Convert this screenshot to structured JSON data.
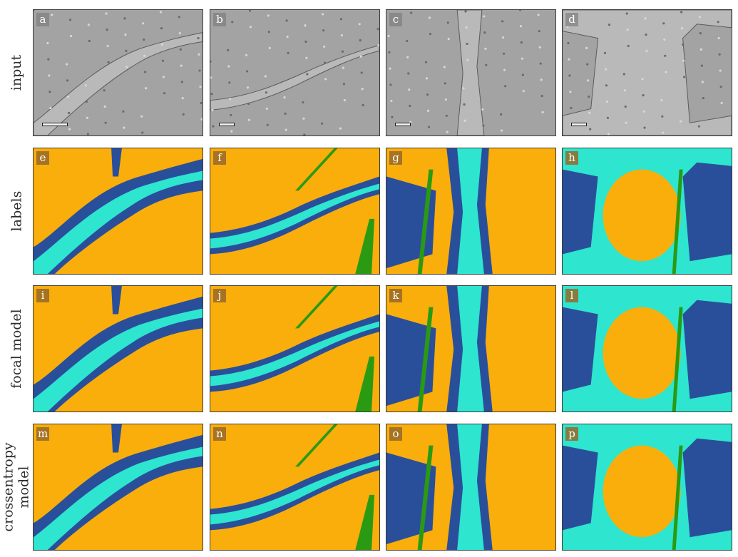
{
  "figure": {
    "rows": [
      {
        "label": "input",
        "type": "input",
        "panels": [
          "a",
          "b",
          "c",
          "d"
        ]
      },
      {
        "label": "labels",
        "type": "seg",
        "panels": [
          "e",
          "f",
          "g",
          "h"
        ]
      },
      {
        "label": "focal model",
        "type": "seg",
        "panels": [
          "i",
          "j",
          "k",
          "l"
        ]
      },
      {
        "label": "crossentropy model",
        "type": "seg",
        "panels": [
          "m",
          "n",
          "o",
          "p"
        ]
      }
    ]
  },
  "colors": {
    "background_class": "#f9ae0b",
    "boundary_class": "#2a4f9a",
    "cyan_class": "#2ee5cf",
    "green_class": "#2a9a12",
    "sem_gray": "#a3a3a3"
  }
}
